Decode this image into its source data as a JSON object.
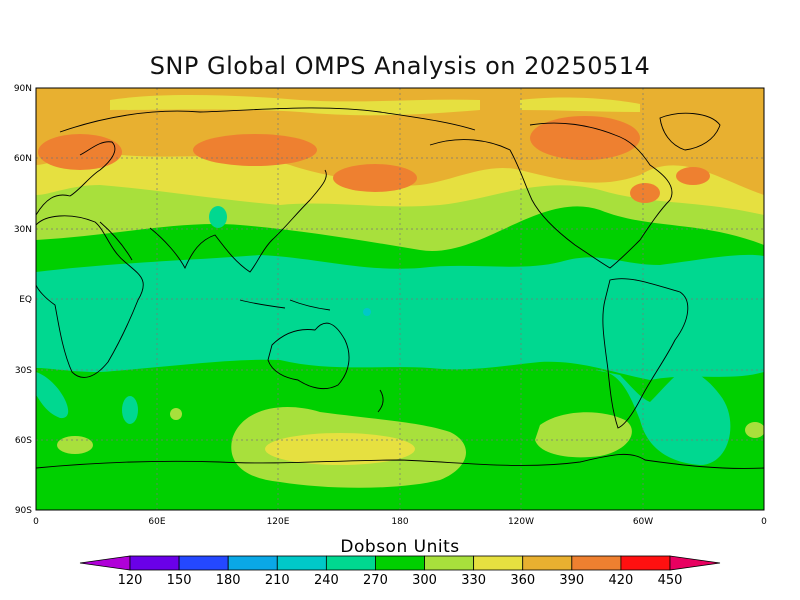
{
  "title": "SNP Global OMPS Analysis on 20250514",
  "lat_ticks": [
    "90N",
    "60N",
    "30N",
    "EQ",
    "30S",
    "60S",
    "90S"
  ],
  "lon_ticks": [
    "0",
    "60E",
    "120E",
    "180",
    "120W",
    "60W",
    "0"
  ],
  "colorbar": {
    "title": "Dobson Units",
    "labels": [
      "120",
      "150",
      "180",
      "210",
      "240",
      "270",
      "300",
      "330",
      "360",
      "390",
      "420",
      "450"
    ],
    "colors": [
      "#b000d8",
      "#6a00e8",
      "#2448ff",
      "#0aa8e6",
      "#00c8c8",
      "#00d890",
      "#00d000",
      "#a8e03c",
      "#e6e040",
      "#e8b030",
      "#ee8030",
      "#ff1010",
      "#e80060"
    ],
    "low_arrow_color": "#b000d8",
    "high_arrow_color": "#e80060"
  }
}
